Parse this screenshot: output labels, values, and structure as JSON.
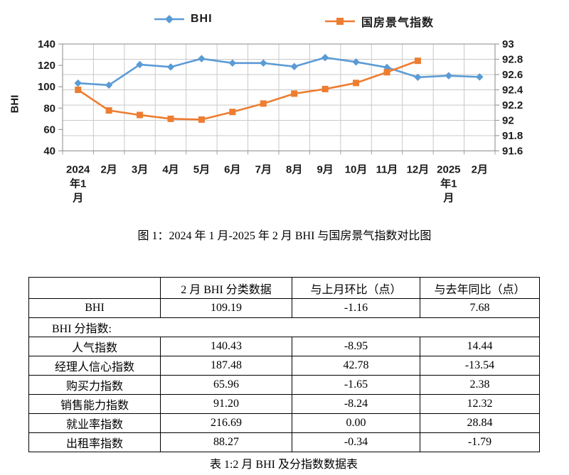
{
  "chart_data": {
    "type": "line",
    "title": "图 1：2024 年 1 月-2025 年 2 月 BHI 与国房景气指数对比图",
    "categories": [
      "2024年1月",
      "2月",
      "3月",
      "4月",
      "5月",
      "6月",
      "7月",
      "8月",
      "9月",
      "10月",
      "11月",
      "12月",
      "2025年1月",
      "2月"
    ],
    "categories_display": [
      [
        "2024",
        "年1",
        "月"
      ],
      [
        "2月"
      ],
      [
        "3月"
      ],
      [
        "4月"
      ],
      [
        "5月"
      ],
      [
        "6月"
      ],
      [
        "7月"
      ],
      [
        "8月"
      ],
      [
        "9月"
      ],
      [
        "10月"
      ],
      [
        "11月"
      ],
      [
        "12月"
      ],
      [
        "2025",
        "年1",
        "月"
      ],
      [
        "2月"
      ]
    ],
    "series": [
      {
        "name": "BHI",
        "axis": "left",
        "color": "#5B9BD5",
        "marker": "diamond",
        "values": [
          103.4,
          101.51,
          120.8,
          118.5,
          126.3,
          122.2,
          122.2,
          118.9,
          127.3,
          123.2,
          118.1,
          108.9,
          110.35,
          109.19
        ]
      },
      {
        "name": "国房景气指数",
        "axis": "right",
        "color": "#ED7D31",
        "marker": "square",
        "values": [
          92.4,
          92.13,
          92.07,
          92.02,
          92.01,
          92.11,
          92.22,
          92.35,
          92.41,
          92.49,
          92.63,
          92.78,
          null,
          null
        ]
      }
    ],
    "legend": [
      "BHI",
      "国房景气指数"
    ],
    "y_left": {
      "label": "BHI",
      "min": 40,
      "max": 140,
      "ticks": [
        40,
        60,
        80,
        100,
        120,
        140
      ],
      "tick_labels": [
        "40",
        "60",
        "80",
        "100",
        "120",
        "140"
      ]
    },
    "y_right": {
      "min": 91.6,
      "max": 93,
      "ticks": [
        91.6,
        91.8,
        92,
        92.2,
        92.4,
        92.6,
        92.8,
        93
      ],
      "tick_labels": [
        "91.6",
        "91.8",
        "92",
        "92.2",
        "92.4",
        "92.6",
        "92.8",
        "93"
      ]
    },
    "grid": {
      "on": true,
      "horizontal_step_axis": "right",
      "gridline_color": "#C9C9C9",
      "axis_line_color": "#9C9C9C"
    },
    "legend_position": "top"
  },
  "figure": {
    "caption": "图 1：2024 年 1 月-2025 年 2 月 BHI 与国房景气指数对比图"
  },
  "table": {
    "headers": [
      "2 月 BHI 分类数据",
      "与上月环比（点）",
      "与去年同比（点）"
    ],
    "bhi_row": {
      "label": "BHI",
      "value": "109.19",
      "mom": "-1.16",
      "yoy": "7.68"
    },
    "section_label": "BHI 分指数:",
    "sub_rows": [
      {
        "label": "人气指数",
        "value": "140.43",
        "mom": "-8.95",
        "yoy": "14.44"
      },
      {
        "label": "经理人信心指数",
        "value": "187.48",
        "mom": "42.78",
        "yoy": "-13.54"
      },
      {
        "label": "购买力指数",
        "value": "65.96",
        "mom": "-1.65",
        "yoy": "2.38"
      },
      {
        "label": "销售能力指数",
        "value": "91.20",
        "mom": "-8.24",
        "yoy": "12.32"
      },
      {
        "label": "就业率指数",
        "value": "216.69",
        "mom": "0.00",
        "yoy": "28.84"
      },
      {
        "label": "出租率指数",
        "value": "88.27",
        "mom": "-0.34",
        "yoy": "-1.79"
      }
    ],
    "caption": "表 1:2 月 BHI 及分指数数据表"
  }
}
